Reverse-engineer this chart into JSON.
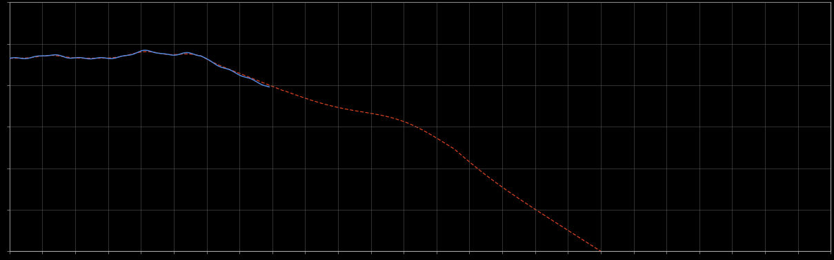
{
  "background_color": "#000000",
  "plot_bg_color": "#000000",
  "grid_color": "#666666",
  "blue_line_color": "#5588dd",
  "red_line_color": "#dd4422",
  "fig_width": 12.09,
  "fig_height": 3.78,
  "dpi": 100,
  "xlim": [
    0,
    120
  ],
  "ylim": [
    -4,
    2
  ],
  "ytick_values": [
    -4,
    -3,
    -2,
    -1,
    0,
    1,
    2
  ],
  "xtick_count": 26,
  "grid_alpha": 0.7,
  "spine_color": "#aaaaaa",
  "blue_end_x": 38
}
